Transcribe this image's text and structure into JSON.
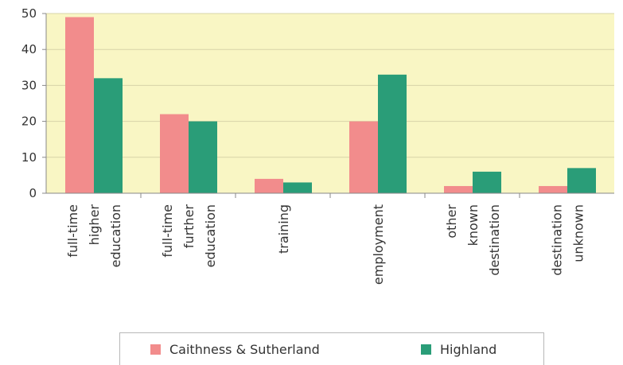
{
  "chart_data": {
    "type": "bar",
    "categories": [
      [
        "full-time",
        "higher",
        "education"
      ],
      [
        "full-time",
        "further",
        "education"
      ],
      [
        "training"
      ],
      [
        "employment"
      ],
      [
        "other",
        "known",
        "destination"
      ],
      [
        "destination",
        "unknown"
      ]
    ],
    "series": [
      {
        "name": "Caithness & Sutherland",
        "color": "#f28c8c",
        "values": [
          49,
          22,
          4,
          20,
          2,
          2
        ]
      },
      {
        "name": "Highland",
        "color": "#2a9d78",
        "values": [
          32,
          20,
          3,
          33,
          6,
          7
        ]
      }
    ],
    "yticks": [
      0,
      10,
      20,
      30,
      40,
      50
    ],
    "ylim": [
      0,
      50
    ],
    "grid": true,
    "plot_background": "#f9f6c4",
    "grid_color": "#d8d4a8",
    "axis_color": "#888888",
    "legend_position": "bottom"
  }
}
